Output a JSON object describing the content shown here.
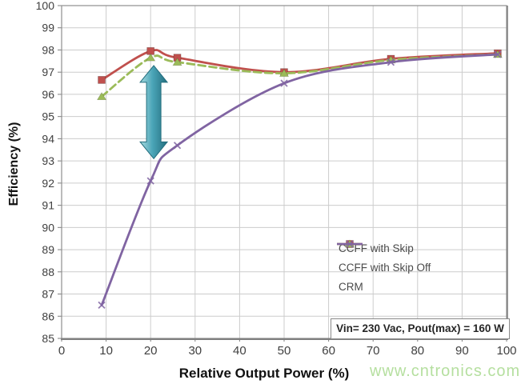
{
  "chart_data": {
    "type": "line",
    "title": "",
    "xlabel": "Relative Output Power (%)",
    "ylabel": "Efficiency (%)",
    "xlim": [
      0,
      100
    ],
    "ylim": [
      85,
      100
    ],
    "x_ticks": [
      0,
      10,
      20,
      30,
      40,
      50,
      60,
      70,
      80,
      90,
      100
    ],
    "y_ticks": [
      85,
      86,
      87,
      88,
      89,
      90,
      91,
      92,
      93,
      94,
      95,
      96,
      97,
      98,
      99,
      100
    ],
    "grid": true,
    "legend_position": "inside-right",
    "x": [
      9,
      20,
      26,
      50,
      74,
      98
    ],
    "series": [
      {
        "name": "CCFF with Skip",
        "color": "#c0504d",
        "style": "solid",
        "marker": "square",
        "values": [
          96.65,
          97.95,
          97.65,
          97.0,
          97.6,
          97.85
        ]
      },
      {
        "name": "CCFF with Skip Off",
        "color": "#9bbb59",
        "style": "dashed",
        "marker": "triangle",
        "values": [
          95.9,
          97.65,
          97.45,
          96.95,
          97.55,
          97.8
        ]
      },
      {
        "name": "CRM",
        "color": "#8064a2",
        "style": "solid",
        "marker": "x",
        "values": [
          86.5,
          92.1,
          93.7,
          96.5,
          97.45,
          97.8
        ]
      }
    ],
    "annotation": "Vin= 230 Vac, Pout(max) = 160 W",
    "arrow": {
      "x": 20.7,
      "y_top": 97.3,
      "y_bottom": 93.1,
      "color_light": "#aadce0",
      "color_mid": "#4ba5b8",
      "color_dark": "#236e7e"
    }
  },
  "style_colors": {
    "grid": "#cccccc",
    "plot_border": "#8e8e8e",
    "axis_shadow": "#7f7f7f",
    "tick_text": "#404040",
    "watermark_green": "#b5df9f"
  },
  "watermark": {
    "text": "www.cntronics.com"
  }
}
